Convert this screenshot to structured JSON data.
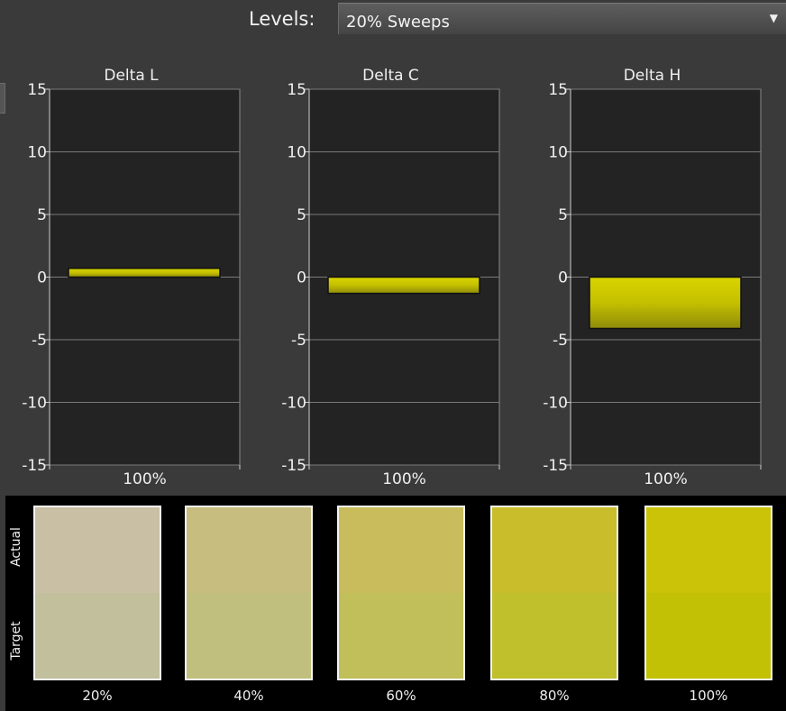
{
  "header": {
    "levels_label": "Levels:",
    "levels_value": "20% Sweeps",
    "dropdown_icon": "triangle-down-icon"
  },
  "chart_data": [
    {
      "type": "bar",
      "title": "Delta L",
      "categories": [
        "100%"
      ],
      "values": [
        0.7
      ],
      "ylim": [
        -15,
        15
      ],
      "yticks": [
        15,
        10,
        5,
        0,
        -5,
        -10,
        -15
      ],
      "grid": true,
      "bar_color": "#c8c400"
    },
    {
      "type": "bar",
      "title": "Delta C",
      "categories": [
        "100%"
      ],
      "values": [
        -1.3
      ],
      "ylim": [
        -15,
        15
      ],
      "yticks": [
        15,
        10,
        5,
        0,
        -5,
        -10,
        -15
      ],
      "grid": true,
      "bar_color": "#c8c400"
    },
    {
      "type": "bar",
      "title": "Delta H",
      "categories": [
        "100%"
      ],
      "values": [
        -4.1
      ],
      "ylim": [
        -15,
        15
      ],
      "yticks": [
        15,
        10,
        5,
        0,
        -5,
        -10,
        -15
      ],
      "grid": true,
      "bar_color": "#c8c400"
    }
  ],
  "swatches": {
    "actual_label": "Actual",
    "target_label": "Target",
    "items": [
      {
        "label": "20%",
        "actual": "#c9bfa4",
        "target": "#c1bf9c"
      },
      {
        "label": "40%",
        "actual": "#c7bd7e",
        "target": "#c1bf7d"
      },
      {
        "label": "60%",
        "actual": "#c9bc5c",
        "target": "#c0bf59"
      },
      {
        "label": "80%",
        "actual": "#c9bd2c",
        "target": "#c0bf2c"
      },
      {
        "label": "100%",
        "actual": "#cbc307",
        "target": "#c2c105"
      }
    ]
  }
}
